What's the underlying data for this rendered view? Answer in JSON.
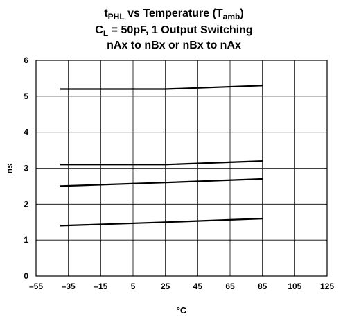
{
  "chart_data": {
    "type": "line",
    "title": {
      "line1": {
        "base1": "t",
        "sub1": "PHL",
        "mid": " vs Temperature (T",
        "sub2": "amb",
        "end": ")"
      },
      "line2": {
        "base": "C",
        "sub": "L",
        "rest": " = 50pF, 1 Output Switching"
      },
      "line3": "nAx to nBx or nBx to nAx"
    },
    "xlabel": "°C",
    "ylabel": "ns",
    "xlim": [
      -55,
      125
    ],
    "ylim": [
      0,
      6
    ],
    "x_ticks": [
      -55,
      -35,
      -15,
      5,
      25,
      45,
      65,
      85,
      105,
      125
    ],
    "x_tick_labels": [
      "–55",
      "–35",
      "–15",
      "5",
      "25",
      "45",
      "65",
      "85",
      "105",
      "125"
    ],
    "y_ticks": [
      0,
      1,
      2,
      3,
      4,
      5,
      6
    ],
    "y_tick_labels": [
      "0",
      "1",
      "2",
      "3",
      "4",
      "5",
      "6"
    ],
    "grid": true,
    "series": [
      {
        "x": [
          -40,
          25,
          85
        ],
        "y": [
          5.2,
          5.2,
          5.3
        ]
      },
      {
        "x": [
          -40,
          25,
          85
        ],
        "y": [
          3.1,
          3.1,
          3.2
        ]
      },
      {
        "x": [
          -40,
          25,
          85
        ],
        "y": [
          2.5,
          2.6,
          2.7
        ]
      },
      {
        "x": [
          -40,
          25,
          85
        ],
        "y": [
          1.4,
          1.5,
          1.6
        ]
      }
    ],
    "line_color": "#000000",
    "grid_color": "#000000"
  }
}
